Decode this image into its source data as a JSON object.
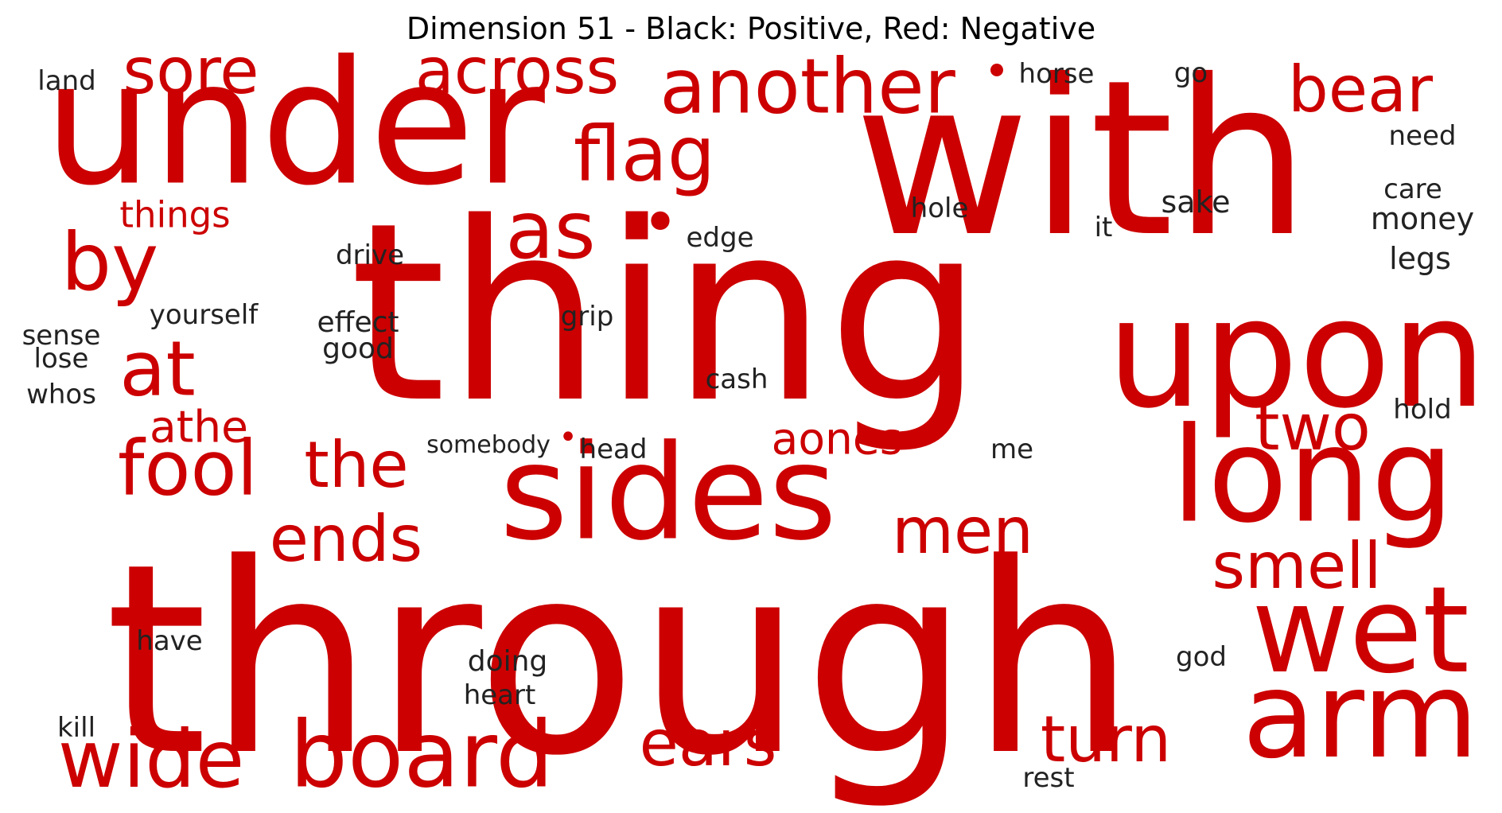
{
  "title": "Dimension 51 - Black: Positive, Red: Negative",
  "colors": {
    "positive": "#222222",
    "negative": "#cc0000"
  },
  "words": [
    {
      "text": "through",
      "sign": "negative"
    },
    {
      "text": "thing",
      "sign": "negative"
    },
    {
      "text": "with",
      "sign": "negative"
    },
    {
      "text": "under",
      "sign": "negative"
    },
    {
      "text": "upon",
      "sign": "negative"
    },
    {
      "text": "sides",
      "sign": "negative"
    },
    {
      "text": "long",
      "sign": "negative"
    },
    {
      "text": "arm",
      "sign": "negative"
    },
    {
      "text": "wet",
      "sign": "negative"
    },
    {
      "text": "board",
      "sign": "negative"
    },
    {
      "text": "wide",
      "sign": "negative"
    },
    {
      "text": "fool",
      "sign": "negative"
    },
    {
      "text": "by",
      "sign": "negative"
    },
    {
      "text": "at",
      "sign": "negative"
    },
    {
      "text": "as",
      "sign": "negative"
    },
    {
      "text": "flag",
      "sign": "negative"
    },
    {
      "text": "another",
      "sign": "negative"
    },
    {
      "text": "across",
      "sign": "negative"
    },
    {
      "text": "sore",
      "sign": "negative"
    },
    {
      "text": "bear",
      "sign": "negative"
    },
    {
      "text": "the",
      "sign": "negative"
    },
    {
      "text": "ends",
      "sign": "negative"
    },
    {
      "text": "men",
      "sign": "negative"
    },
    {
      "text": "ears",
      "sign": "negative"
    },
    {
      "text": "turn",
      "sign": "negative"
    },
    {
      "text": "two",
      "sign": "negative"
    },
    {
      "text": "smell",
      "sign": "negative"
    },
    {
      "text": "athe",
      "sign": "negative"
    },
    {
      "text": "aones",
      "sign": "negative"
    },
    {
      "text": "things",
      "sign": "negative"
    },
    {
      "text": "•",
      "sign": "negative"
    },
    {
      "text": "•",
      "sign": "negative"
    },
    {
      "text": "•",
      "sign": "negative"
    },
    {
      "text": "land",
      "sign": "positive"
    },
    {
      "text": "horse",
      "sign": "positive"
    },
    {
      "text": "go",
      "sign": "positive"
    },
    {
      "text": "need",
      "sign": "positive"
    },
    {
      "text": "care",
      "sign": "positive"
    },
    {
      "text": "money",
      "sign": "positive"
    },
    {
      "text": "legs",
      "sign": "positive"
    },
    {
      "text": "sake",
      "sign": "positive"
    },
    {
      "text": "it",
      "sign": "positive"
    },
    {
      "text": "hole",
      "sign": "positive"
    },
    {
      "text": "edge",
      "sign": "positive"
    },
    {
      "text": "drive",
      "sign": "positive"
    },
    {
      "text": "yourself",
      "sign": "positive"
    },
    {
      "text": "effect",
      "sign": "positive"
    },
    {
      "text": "good",
      "sign": "positive"
    },
    {
      "text": "grip",
      "sign": "positive"
    },
    {
      "text": "sense",
      "sign": "positive"
    },
    {
      "text": "lose",
      "sign": "positive"
    },
    {
      "text": "whos",
      "sign": "positive"
    },
    {
      "text": "cash",
      "sign": "positive"
    },
    {
      "text": "somebody",
      "sign": "positive"
    },
    {
      "text": "head",
      "sign": "positive"
    },
    {
      "text": "me",
      "sign": "positive"
    },
    {
      "text": "hold",
      "sign": "positive"
    },
    {
      "text": "have",
      "sign": "positive"
    },
    {
      "text": "doing",
      "sign": "positive"
    },
    {
      "text": "heart",
      "sign": "positive"
    },
    {
      "text": "god",
      "sign": "positive"
    },
    {
      "text": "kill",
      "sign": "positive"
    },
    {
      "text": "rest",
      "sign": "positive"
    }
  ]
}
